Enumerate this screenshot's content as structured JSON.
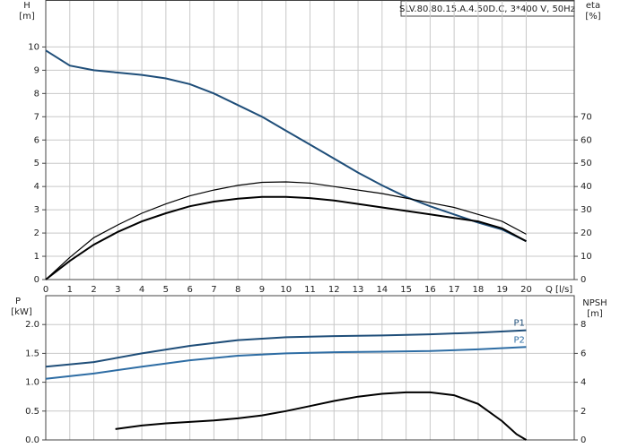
{
  "chart_data": [
    {
      "type": "line",
      "title": "SLV.80.80.15.A.4.50D.C, 3*400 V, 50Hz",
      "xlabel": "Q [l/s]",
      "ylabel": "H",
      "yunit": "[m]",
      "y2label": "eta",
      "y2unit": "[%]",
      "xlim": [
        0,
        22
      ],
      "xticks": [
        0,
        1,
        2,
        3,
        4,
        5,
        6,
        7,
        8,
        9,
        10,
        11,
        12,
        13,
        14,
        15,
        16,
        17,
        18,
        19,
        20
      ],
      "ylim": [
        0,
        12
      ],
      "yticks": [
        0,
        1,
        2,
        3,
        4,
        5,
        6,
        7,
        8,
        9,
        10
      ],
      "y2lim": [
        0,
        120
      ],
      "y2ticks": [
        0,
        10,
        20,
        30,
        40,
        50,
        60,
        70
      ],
      "grid": true,
      "series": [
        {
          "color": "#1f4e79",
          "x": [
            0,
            1,
            2,
            3,
            4,
            5,
            6,
            7,
            8,
            9,
            10,
            11,
            12,
            13,
            14,
            15,
            16,
            17,
            18,
            19,
            20
          ],
          "values": [
            9.85,
            9.2,
            9.0,
            8.9,
            8.8,
            8.65,
            8.4,
            8.0,
            7.5,
            7.0,
            6.4,
            5.8,
            5.2,
            4.6,
            4.05,
            3.55,
            3.15,
            2.8,
            2.45,
            2.15,
            1.65
          ]
        },
        {
          "color": "#000000",
          "axis": "y2",
          "x": [
            0,
            1,
            2,
            3,
            4,
            5,
            6,
            7,
            8,
            9,
            10,
            11,
            12,
            13,
            14,
            15,
            16,
            17,
            18,
            19,
            20
          ],
          "values": [
            0,
            9.5,
            18,
            23.5,
            28.5,
            32.5,
            36,
            38.5,
            40.5,
            41.8,
            42,
            41.5,
            40,
            38.5,
            37,
            35,
            33,
            31,
            28,
            25,
            19.5
          ]
        },
        {
          "color": "#000000",
          "axis": "y2",
          "x": [
            0,
            1,
            2,
            3,
            4,
            5,
            6,
            7,
            8,
            9,
            10,
            11,
            12,
            13,
            14,
            15,
            16,
            17,
            18,
            19,
            20
          ],
          "values": [
            0,
            8,
            15,
            20.5,
            25,
            28.5,
            31.5,
            33.5,
            34.8,
            35.5,
            35.5,
            35,
            34,
            32.5,
            31,
            29.5,
            28,
            26.5,
            25,
            22,
            16.5
          ]
        }
      ]
    },
    {
      "type": "line",
      "ylabel": "P",
      "yunit": "[kW]",
      "y2label": "NPSH",
      "y2unit": "[m]",
      "xlim": [
        0,
        22
      ],
      "xticks": [
        0,
        1,
        2,
        3,
        4,
        5,
        6,
        7,
        8,
        9,
        10,
        11,
        12,
        13,
        14,
        15,
        16,
        17,
        18,
        19,
        20
      ],
      "ylim": [
        0,
        2.5
      ],
      "yticks": [
        {
          "value": 0,
          "label": "0.0"
        },
        0.5,
        {
          "value": 1,
          "label": "1.0"
        },
        1.5,
        {
          "value": 2,
          "label": "2.0"
        }
      ],
      "y2lim": [
        0,
        10
      ],
      "y2ticks": [
        0,
        2,
        4,
        6,
        8
      ],
      "grid": true,
      "series": [
        {
          "name": "P1",
          "color": "#1f4e79",
          "x": [
            0,
            2,
            4,
            6,
            8,
            10,
            12,
            14,
            16,
            18,
            20
          ],
          "values": [
            1.27,
            1.35,
            1.5,
            1.63,
            1.73,
            1.78,
            1.8,
            1.81,
            1.83,
            1.86,
            1.9
          ]
        },
        {
          "name": "P2",
          "color": "#2e6da4",
          "x": [
            0,
            2,
            4,
            6,
            8,
            10,
            12,
            14,
            16,
            18,
            20
          ],
          "values": [
            1.06,
            1.15,
            1.27,
            1.38,
            1.46,
            1.5,
            1.52,
            1.53,
            1.54,
            1.57,
            1.61
          ]
        },
        {
          "color": "#000000",
          "axis": "y2",
          "x": [
            2.9,
            4,
            5,
            6,
            7,
            8,
            9,
            10,
            11,
            12,
            13,
            14,
            15,
            16,
            17,
            18,
            19,
            19.6,
            20
          ],
          "values": [
            0.75,
            1.0,
            1.15,
            1.25,
            1.35,
            1.5,
            1.7,
            2.0,
            2.35,
            2.7,
            3.0,
            3.2,
            3.3,
            3.3,
            3.1,
            2.5,
            1.3,
            0.4,
            0
          ]
        }
      ]
    }
  ]
}
